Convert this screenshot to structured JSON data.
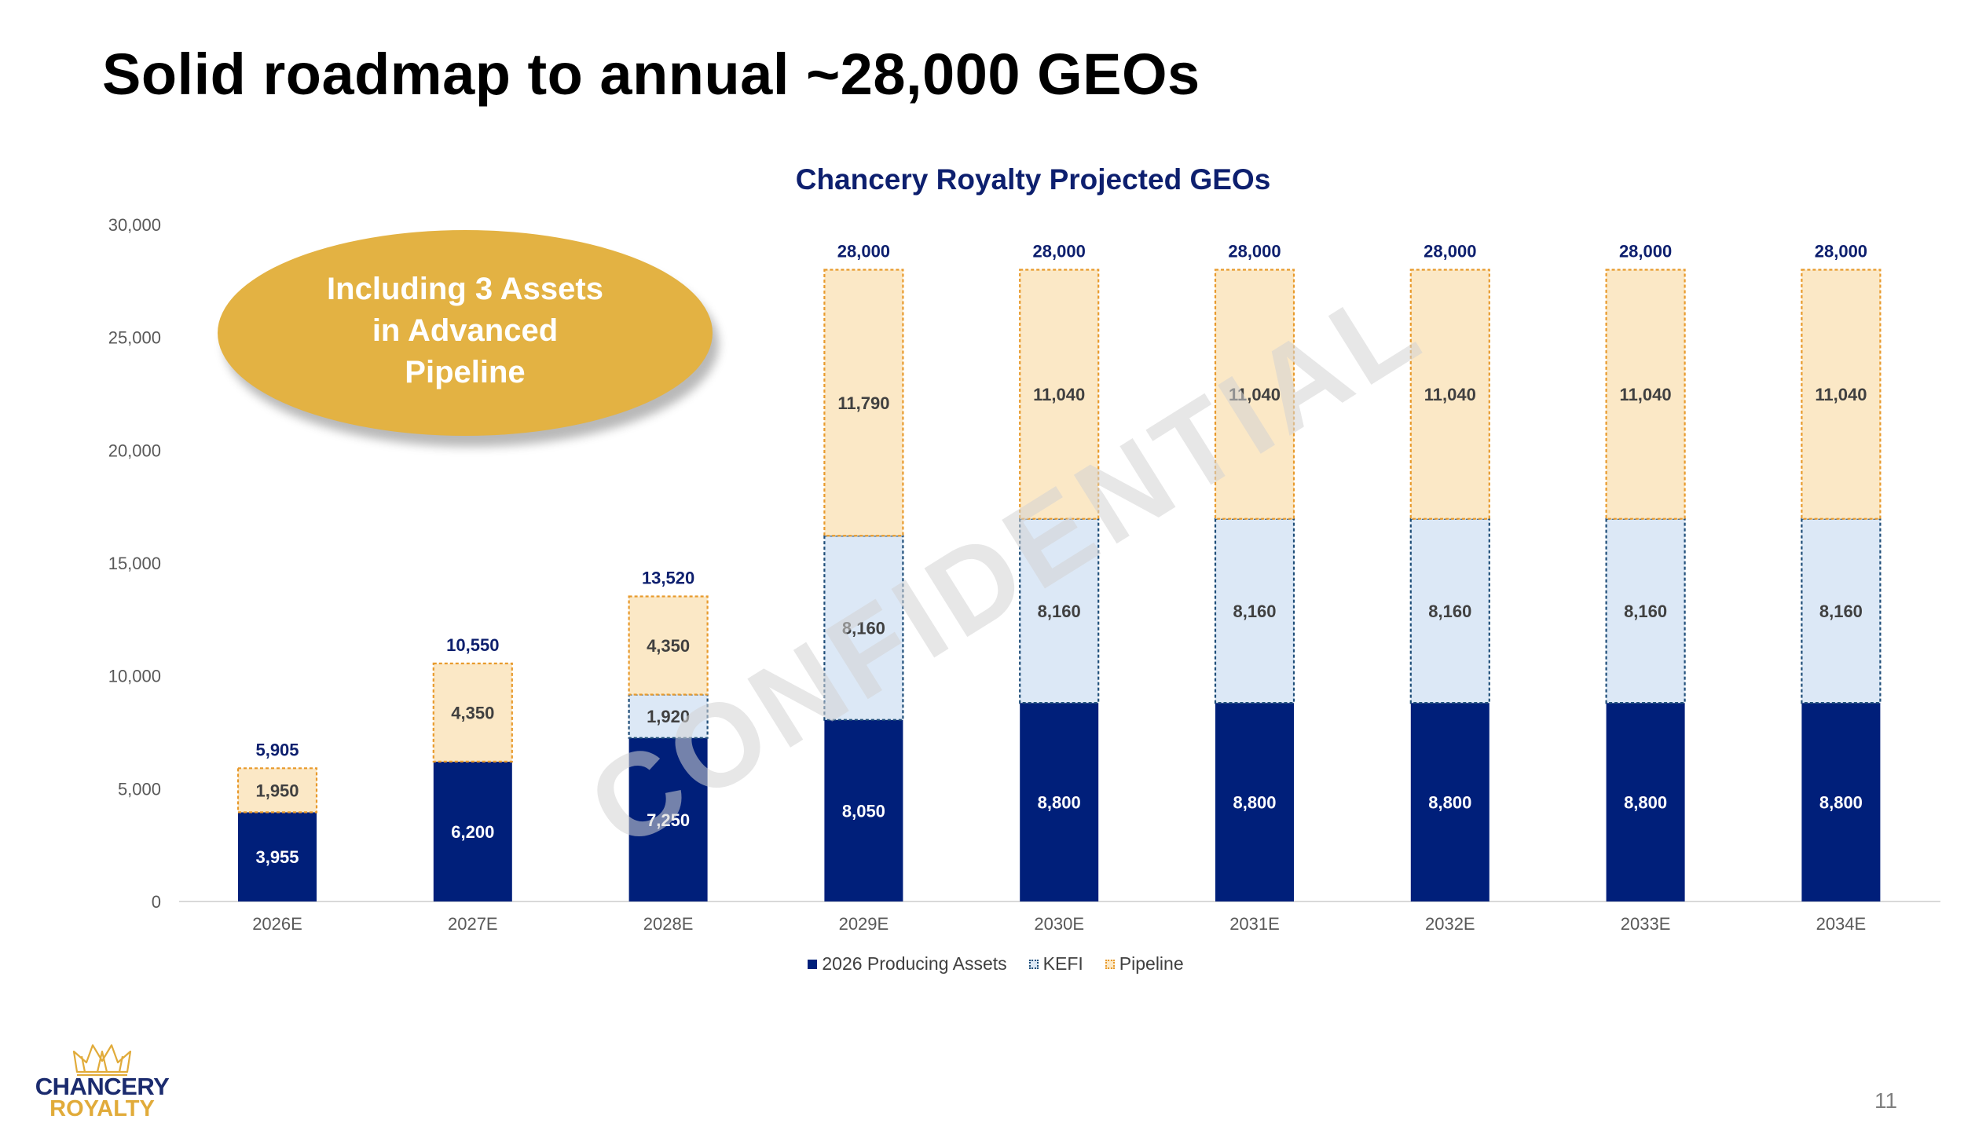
{
  "slide": {
    "title": "Solid roadmap to annual ~28,000 GEOs",
    "callout": "Including 3 Assets in Advanced Pipeline",
    "watermark": "CONFIDENTIAL",
    "logo": {
      "line1": "CHANCERY",
      "line2": "ROYALTY",
      "icon": "crown-icon"
    },
    "page_number": "11"
  },
  "chart_data": {
    "type": "bar",
    "stacked": true,
    "title": "Chancery Royalty Projected GEOs",
    "categories": [
      "2026E",
      "2027E",
      "2028E",
      "2029E",
      "2030E",
      "2031E",
      "2032E",
      "2033E",
      "2034E"
    ],
    "series": [
      {
        "name": "2026 Producing Assets",
        "values": [
          3955,
          6200,
          7250,
          8050,
          8800,
          8800,
          8800,
          8800,
          8800
        ],
        "labels": [
          "3,955",
          "6,200",
          "7,250",
          "8,050",
          "8,800",
          "8,800",
          "8,800",
          "8,800",
          "8,800"
        ],
        "color": "#001f7a",
        "border": "#001f7a",
        "label_color": "#ffffff"
      },
      {
        "name": "KEFI",
        "values": [
          0,
          0,
          1920,
          8160,
          8160,
          8160,
          8160,
          8160,
          8160
        ],
        "labels": [
          "",
          "",
          "1,920",
          "8,160",
          "8,160",
          "8,160",
          "8,160",
          "8,160",
          "8,160"
        ],
        "color": "#dce8f6",
        "border": "#1f4e79",
        "label_color": "#404040"
      },
      {
        "name": "Pipeline",
        "values": [
          1950,
          4350,
          4350,
          11790,
          11040,
          11040,
          11040,
          11040,
          11040
        ],
        "labels": [
          "1,950",
          "4,350",
          "4,350",
          "11,790",
          "11,040",
          "11,040",
          "11,040",
          "11,040",
          "11,040"
        ],
        "color": "#fbe8c6",
        "border": "#e89a2c",
        "label_color": "#404040"
      }
    ],
    "totals": [
      "5,905",
      "10,550",
      "13,520",
      "28,000",
      "28,000",
      "28,000",
      "28,000",
      "28,000",
      "28,000"
    ],
    "total_color": "#0d1f6e",
    "ylim": [
      0,
      30000
    ],
    "yticks": [
      0,
      5000,
      10000,
      15000,
      20000,
      25000,
      30000
    ],
    "ytick_labels": [
      "0",
      "5,000",
      "10,000",
      "15,000",
      "20,000",
      "25,000",
      "30,000"
    ],
    "xlabel": "",
    "ylabel": "",
    "grid": false,
    "legend": "bottom-center"
  },
  "legend": {
    "items": [
      {
        "label": "2026 Producing Assets"
      },
      {
        "label": "KEFI"
      },
      {
        "label": "Pipeline"
      }
    ]
  }
}
